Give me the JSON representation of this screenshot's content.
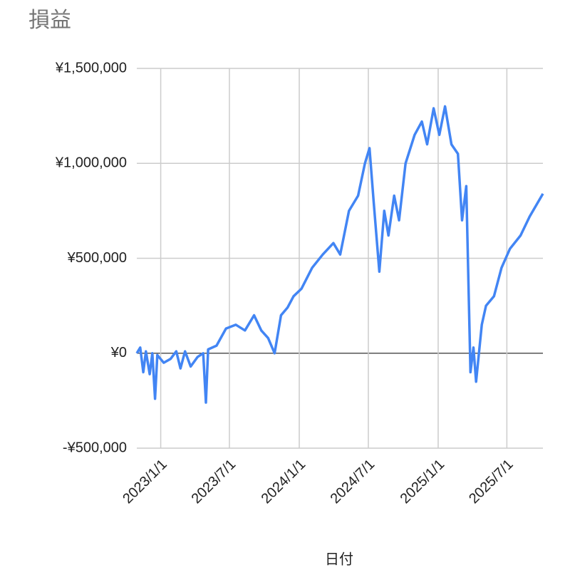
{
  "chart_data": {
    "type": "line",
    "title": "損益",
    "x_label": "日付",
    "x": [
      "2022/10/30",
      "2022/11/8",
      "2022/11/16",
      "2022/11/23",
      "2022/12/3",
      "2022/12/10",
      "2022/12/17",
      "2022/12/23",
      "2023/1/9",
      "2023/1/27",
      "2023/2/11",
      "2023/2/22",
      "2023/3/6",
      "2023/3/21",
      "2023/4/8",
      "2023/4/23",
      "2023/4/30",
      "2023/5/6",
      "2023/5/28",
      "2023/6/22",
      "2023/7/18",
      "2023/8/11",
      "2023/9/4",
      "2023/9/23",
      "2023/10/11",
      "2023/10/28",
      "2023/11/14",
      "2023/12/1",
      "2023/12/17",
      "2024/1/7",
      "2024/2/4",
      "2024/3/3",
      "2024/3/31",
      "2024/4/18",
      "2024/5/11",
      "2024/6/4",
      "2024/6/22",
      "2024/7/4",
      "2024/7/15",
      "2024/7/30",
      "2024/8/12",
      "2024/8/23",
      "2024/9/7",
      "2024/9/20",
      "2024/10/7",
      "2024/10/31",
      "2024/11/19",
      "2024/12/3",
      "2024/12/20",
      "2025/1/4",
      "2025/1/19",
      "2025/2/5",
      "2025/2/22",
      "2025/3/5",
      "2025/3/16",
      "2025/3/27",
      "2025/4/4",
      "2025/4/11",
      "2025/4/26",
      "2025/5/7",
      "2025/5/28",
      "2025/6/17",
      "2025/7/9",
      "2025/8/6",
      "2025/8/30",
      "2025/10/4"
    ],
    "series": [
      {
        "name": "損益",
        "color": "#4285f4",
        "values": [
          0,
          30000,
          -100000,
          10000,
          -110000,
          0,
          -240000,
          -10000,
          -50000,
          -30000,
          10000,
          -80000,
          10000,
          -70000,
          -20000,
          0,
          -260000,
          20000,
          40000,
          130000,
          150000,
          120000,
          200000,
          120000,
          80000,
          0,
          200000,
          240000,
          300000,
          340000,
          450000,
          520000,
          580000,
          520000,
          750000,
          830000,
          1000000,
          1080000,
          800000,
          430000,
          750000,
          620000,
          830000,
          700000,
          1000000,
          1150000,
          1220000,
          1100000,
          1290000,
          1150000,
          1300000,
          1100000,
          1050000,
          700000,
          880000,
          -100000,
          30000,
          -150000,
          150000,
          250000,
          300000,
          450000,
          550000,
          620000,
          720000,
          840000
        ]
      }
    ],
    "xlim": [
      "2022/10/30",
      "2025/10/4"
    ],
    "xticks": [
      "2023/1/1",
      "2023/7/1",
      "2024/1/1",
      "2024/7/1",
      "2025/1/1",
      "2025/7/1"
    ],
    "ylim": [
      -500000,
      1500000
    ],
    "yticks": [
      {
        "value": -500000,
        "label": "-¥500,000"
      },
      {
        "value": 0,
        "label": "¥0"
      },
      {
        "value": 500000,
        "label": "¥500,000"
      },
      {
        "value": 1000000,
        "label": "¥1,000,000"
      },
      {
        "value": 1500000,
        "label": "¥1,500,000"
      }
    ],
    "grid": true
  }
}
